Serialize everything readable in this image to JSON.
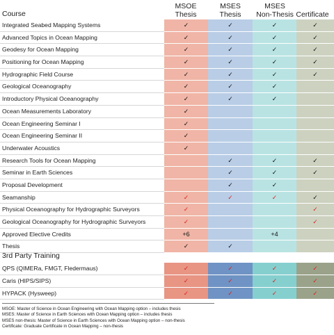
{
  "header": {
    "course": "Course",
    "columns": [
      [
        "MSOE",
        "Thesis"
      ],
      [
        "MSES",
        "Thesis"
      ],
      [
        "MSES",
        "Non-Thesis"
      ],
      [
        "Certificate"
      ]
    ]
  },
  "courses": [
    {
      "name": "Integrated Seabed Mapping Systems",
      "cells": [
        {
          "t": "✓",
          "c": "blk"
        },
        {
          "t": "✓",
          "c": "blk"
        },
        {
          "t": "✓",
          "c": "blk"
        },
        {
          "t": "✓",
          "c": "blk"
        }
      ]
    },
    {
      "name": "Advanced Topics in Ocean Mapping",
      "cells": [
        {
          "t": "✓",
          "c": "blk"
        },
        {
          "t": "✓",
          "c": "blk"
        },
        {
          "t": "✓",
          "c": "blk"
        },
        {
          "t": "✓",
          "c": "blk"
        }
      ]
    },
    {
      "name": "Geodesy for Ocean Mapping",
      "cells": [
        {
          "t": "✓",
          "c": "blk"
        },
        {
          "t": "✓",
          "c": "blk"
        },
        {
          "t": "✓",
          "c": "blk"
        },
        {
          "t": "✓",
          "c": "blk"
        }
      ]
    },
    {
      "name": "Positioning for Ocean Mapping",
      "cells": [
        {
          "t": "✓",
          "c": "blk"
        },
        {
          "t": "✓",
          "c": "blk"
        },
        {
          "t": "✓",
          "c": "blk"
        },
        {
          "t": "✓",
          "c": "blk"
        }
      ]
    },
    {
      "name": "Hydrographic Field Course",
      "cells": [
        {
          "t": "✓",
          "c": "blk"
        },
        {
          "t": "✓",
          "c": "blk"
        },
        {
          "t": "✓",
          "c": "blk"
        },
        {
          "t": "✓",
          "c": "blk"
        }
      ]
    },
    {
      "name": "Geological Oceanography",
      "cells": [
        {
          "t": "✓",
          "c": "blk"
        },
        {
          "t": "✓",
          "c": "blk"
        },
        {
          "t": "✓",
          "c": "blk"
        },
        {
          "t": "",
          "c": "blk"
        }
      ]
    },
    {
      "name": "Introductory Physical Oceanography",
      "cells": [
        {
          "t": "✓",
          "c": "blk"
        },
        {
          "t": "✓",
          "c": "blk"
        },
        {
          "t": "✓",
          "c": "blk"
        },
        {
          "t": "",
          "c": "blk"
        }
      ]
    },
    {
      "name": "Ocean Measurements Laboratory",
      "cells": [
        {
          "t": "✓",
          "c": "blk"
        },
        {
          "t": "",
          "c": "blk"
        },
        {
          "t": "",
          "c": "blk"
        },
        {
          "t": "",
          "c": "blk"
        }
      ]
    },
    {
      "name": "Ocean Engineering Seminar I",
      "cells": [
        {
          "t": "✓",
          "c": "blk"
        },
        {
          "t": "",
          "c": "blk"
        },
        {
          "t": "",
          "c": "blk"
        },
        {
          "t": "",
          "c": "blk"
        }
      ]
    },
    {
      "name": "Ocean Engineering Seminar II",
      "cells": [
        {
          "t": "✓",
          "c": "blk"
        },
        {
          "t": "",
          "c": "blk"
        },
        {
          "t": "",
          "c": "blk"
        },
        {
          "t": "",
          "c": "blk"
        }
      ]
    },
    {
      "name": "Underwater Acoustics",
      "cells": [
        {
          "t": "✓",
          "c": "blk"
        },
        {
          "t": "",
          "c": "blk"
        },
        {
          "t": "",
          "c": "blk"
        },
        {
          "t": "",
          "c": "blk"
        }
      ]
    },
    {
      "name": "Research Tools for Ocean Mapping",
      "cells": [
        {
          "t": "",
          "c": "blk"
        },
        {
          "t": "✓",
          "c": "blk"
        },
        {
          "t": "✓",
          "c": "blk"
        },
        {
          "t": "✓",
          "c": "blk"
        }
      ]
    },
    {
      "name": "Seminar in Earth Sciences",
      "cells": [
        {
          "t": "",
          "c": "blk"
        },
        {
          "t": "✓",
          "c": "blk"
        },
        {
          "t": "✓",
          "c": "blk"
        },
        {
          "t": "✓",
          "c": "blk"
        }
      ]
    },
    {
      "name": "Proposal Development",
      "cells": [
        {
          "t": "",
          "c": "blk"
        },
        {
          "t": "✓",
          "c": "blk"
        },
        {
          "t": "✓",
          "c": "blk"
        },
        {
          "t": "",
          "c": "blk"
        }
      ]
    },
    {
      "name": "Seamanship",
      "cells": [
        {
          "t": "✓",
          "c": "red"
        },
        {
          "t": "✓",
          "c": "red"
        },
        {
          "t": "✓",
          "c": "red"
        },
        {
          "t": "✓",
          "c": "blk"
        }
      ]
    },
    {
      "name": "Physical Oceanography for Hydrographic Surveyors",
      "cells": [
        {
          "t": "✓",
          "c": "red"
        },
        {
          "t": "",
          "c": "blk"
        },
        {
          "t": "",
          "c": "blk"
        },
        {
          "t": "✓",
          "c": "red"
        }
      ]
    },
    {
      "name": "Geological Oceanography for Hydrographic Surveyors",
      "cells": [
        {
          "t": "✓",
          "c": "red"
        },
        {
          "t": "",
          "c": "blk"
        },
        {
          "t": "",
          "c": "blk"
        },
        {
          "t": "✓",
          "c": "red"
        }
      ]
    },
    {
      "name": "Approved Elective Credits",
      "cells": [
        {
          "t": "+6",
          "c": "blk"
        },
        {
          "t": "",
          "c": "blk"
        },
        {
          "t": "+4",
          "c": "blk"
        },
        {
          "t": "",
          "c": "blk"
        }
      ]
    },
    {
      "name": "Thesis",
      "cells": [
        {
          "t": "✓",
          "c": "blk"
        },
        {
          "t": "✓",
          "c": "blk"
        },
        {
          "t": "",
          "c": "blk"
        },
        {
          "t": "",
          "c": "blk"
        }
      ]
    }
  ],
  "third_party": {
    "title": "3rd Party Training",
    "rows": [
      {
        "name": "QPS (QIMERa, FMGT, Fledermaus)",
        "cells": [
          {
            "t": "✓",
            "c": "red"
          },
          {
            "t": "✓",
            "c": "red"
          },
          {
            "t": "✓",
            "c": "red"
          },
          {
            "t": "✓",
            "c": "red"
          }
        ]
      },
      {
        "name": "Caris (HIPS/SIPS)",
        "cells": [
          {
            "t": "✓",
            "c": "red"
          },
          {
            "t": "✓",
            "c": "red"
          },
          {
            "t": "✓",
            "c": "red"
          },
          {
            "t": "✓",
            "c": "red"
          }
        ]
      },
      {
        "name": "HYPACK (Hysweep)",
        "cells": [
          {
            "t": "✓",
            "c": "red"
          },
          {
            "t": "✓",
            "c": "red"
          },
          {
            "t": "✓",
            "c": "red"
          },
          {
            "t": "✓",
            "c": "red"
          }
        ]
      }
    ]
  },
  "legend": [
    "MSOE: Master of Science in Ocean Engineering with Ocean Mapping option – includes thesis",
    "MSES: Master of Science in Earth Sciences with Ocean Mapping option – includes thesis",
    "MSES non-thesis: Master of Science in Earth Sciences with Ocean Mapping option – non-thesis",
    "Certificate: Graduate Certificate in Ocean Mapping – non-thesis"
  ]
}
